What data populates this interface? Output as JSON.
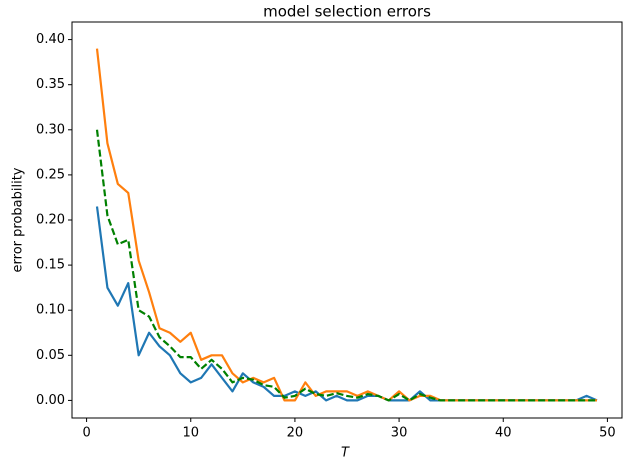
{
  "chart_data": {
    "type": "line",
    "title": "model selection errors",
    "x_label": "T",
    "y_label": "error probability",
    "x": [
      1,
      2,
      3,
      4,
      5,
      6,
      7,
      8,
      9,
      10,
      11,
      12,
      13,
      14,
      15,
      16,
      17,
      18,
      19,
      20,
      21,
      22,
      23,
      24,
      25,
      26,
      27,
      28,
      29,
      30,
      31,
      32,
      33,
      34,
      35,
      36,
      37,
      38,
      39,
      40,
      41,
      42,
      43,
      44,
      45,
      46,
      47,
      48,
      49
    ],
    "series": [
      {
        "color": "#1f77b4",
        "style": "solid",
        "values": [
          0.215,
          0.125,
          0.105,
          0.13,
          0.05,
          0.075,
          0.06,
          0.05,
          0.03,
          0.02,
          0.025,
          0.04,
          0.025,
          0.01,
          0.03,
          0.02,
          0.015,
          0.005,
          0.005,
          0.01,
          0.005,
          0.01,
          0,
          0.005,
          0,
          0,
          0.005,
          0.005,
          0,
          0,
          0,
          0.01,
          0,
          0,
          0,
          0,
          0,
          0,
          0,
          0,
          0,
          0,
          0,
          0,
          0,
          0,
          0,
          0.005,
          0
        ]
      },
      {
        "color": "#ff7f0e",
        "style": "solid",
        "values": [
          0.39,
          0.285,
          0.24,
          0.23,
          0.155,
          0.12,
          0.08,
          0.075,
          0.065,
          0.075,
          0.045,
          0.05,
          0.05,
          0.03,
          0.02,
          0.025,
          0.02,
          0.025,
          0,
          0,
          0.02,
          0.005,
          0.01,
          0.01,
          0.01,
          0.005,
          0.01,
          0.005,
          0,
          0.01,
          0,
          0.005,
          0.005,
          0,
          0,
          0,
          0,
          0,
          0,
          0,
          0,
          0,
          0,
          0,
          0,
          0,
          0,
          0,
          0
        ]
      },
      {
        "color": "#008000",
        "style": "dashed",
        "values": [
          0.3,
          0.205,
          0.173,
          0.178,
          0.1,
          0.093,
          0.07,
          0.06,
          0.048,
          0.048,
          0.035,
          0.045,
          0.035,
          0.02,
          0.025,
          0.023,
          0.017,
          0.015,
          0.003,
          0.005,
          0.013,
          0.007,
          0.005,
          0.008,
          0.005,
          0.003,
          0.007,
          0.005,
          0,
          0.007,
          0,
          0.007,
          0.003,
          0,
          0,
          0,
          0,
          0,
          0,
          0,
          0,
          0,
          0,
          0,
          0,
          0,
          0,
          0,
          0
        ]
      }
    ],
    "xlim": [
      -1.4,
      51.4
    ],
    "xticks": [
      0,
      10,
      20,
      30,
      40,
      50
    ],
    "ylim": [
      -0.0195,
      0.4195
    ],
    "yticks": [
      {
        "value": 0,
        "label": "0.00"
      },
      {
        "value": 0.05,
        "label": "0.05"
      },
      {
        "value": 0.1,
        "label": "0.10"
      },
      {
        "value": 0.15,
        "label": "0.15"
      },
      {
        "value": 0.2,
        "label": "0.20"
      },
      {
        "value": 0.25,
        "label": "0.25"
      },
      {
        "value": 0.3,
        "label": "0.30"
      },
      {
        "value": 0.35,
        "label": "0.35"
      },
      {
        "value": 0.4,
        "label": "0.40"
      }
    ],
    "grid": false
  }
}
